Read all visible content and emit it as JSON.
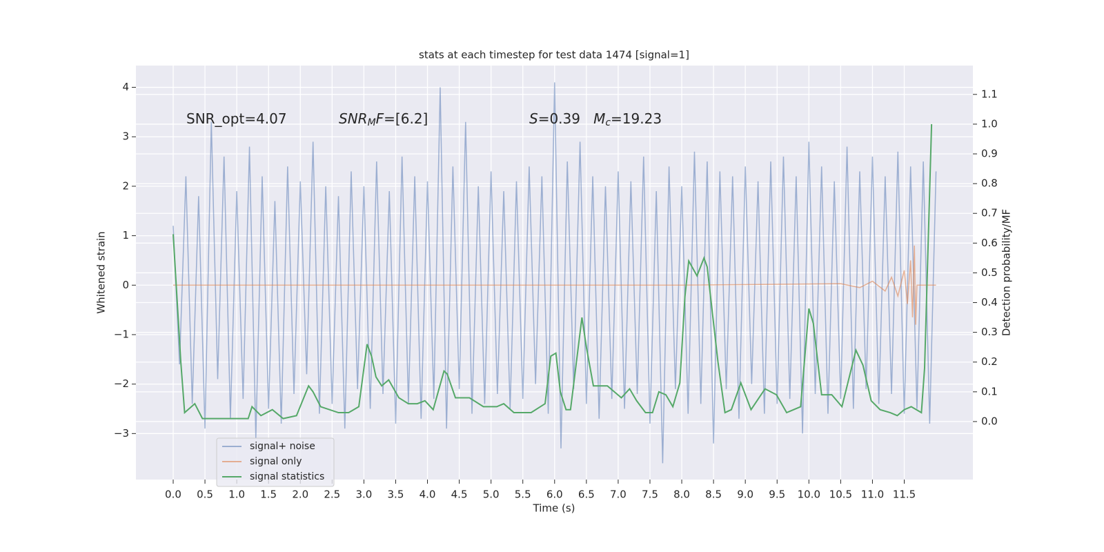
{
  "chart_data": {
    "type": "line",
    "title": "stats at each timestep for test data 1474 [signal=1]",
    "x_label": "Time (s)",
    "y_label": "Whitened strain",
    "y2_label": "Detection probability/MF",
    "xlim": [
      -0.586,
      12.58
    ],
    "ylim": [
      -3.93,
      4.44
    ],
    "y2lim": [
      -0.195,
      1.197
    ],
    "xticks": [
      {
        "value": 0,
        "label": "0.0"
      },
      0.5,
      {
        "value": 1,
        "label": "1.0"
      },
      1.5,
      {
        "value": 2,
        "label": "2.0"
      },
      2.5,
      {
        "value": 3,
        "label": "3.0"
      },
      3.5,
      {
        "value": 4,
        "label": "4.0"
      },
      4.5,
      {
        "value": 5,
        "label": "5.0"
      },
      5.5,
      {
        "value": 6,
        "label": "6.0"
      },
      6.5,
      {
        "value": 7,
        "label": "7.0"
      },
      7.5,
      {
        "value": 8,
        "label": "8.0"
      },
      8.5,
      {
        "value": 9,
        "label": "9.0"
      },
      9.5,
      {
        "value": 10,
        "label": "10.0"
      },
      10.5,
      {
        "value": 11,
        "label": "11.0"
      },
      11.5
    ],
    "yticks": [
      {
        "value": -3,
        "label": "−3"
      },
      {
        "value": -2,
        "label": "−2"
      },
      {
        "value": -1,
        "label": "−1"
      },
      0,
      1,
      2,
      3,
      4
    ],
    "y2ticks": [
      {
        "value": 0,
        "label": "0.0"
      },
      0.1,
      0.2,
      0.3,
      0.4,
      0.5,
      0.6,
      0.7,
      0.8,
      0.9,
      {
        "value": 1,
        "label": "1.0"
      },
      1.1
    ],
    "grid": true,
    "legend": "lower left",
    "annotations": [
      [
        {
          "text": "SNR_opt=4.07"
        }
      ],
      [
        {
          "text": "SNR",
          "italic": true
        },
        {
          "text": "M",
          "italic": true,
          "sub": true
        },
        {
          "text": "F",
          "italic": true
        },
        {
          "text": "=[6.2]"
        }
      ],
      [
        {
          "text": "S",
          "italic": true
        },
        {
          "text": "=0.39   "
        },
        {
          "text": "M",
          "italic": true
        },
        {
          "text": "c",
          "italic": true,
          "sub": true
        },
        {
          "text": "=19.23"
        }
      ]
    ],
    "series": [
      {
        "name": "signal+ noise",
        "color": "#4c72b0",
        "opacity": 0.5,
        "x": [
          0.0,
          0.1,
          0.2,
          0.3,
          0.4,
          0.5,
          0.6,
          0.7,
          0.8,
          0.9,
          1.0,
          1.1,
          1.2,
          1.3,
          1.4,
          1.5,
          1.6,
          1.7,
          1.8,
          1.9,
          2.0,
          2.1,
          2.2,
          2.3,
          2.4,
          2.5,
          2.6,
          2.7,
          2.8,
          2.9,
          3.0,
          3.1,
          3.2,
          3.3,
          3.4,
          3.5,
          3.6,
          3.7,
          3.8,
          3.9,
          4.0,
          4.1,
          4.2,
          4.3,
          4.4,
          4.5,
          4.6,
          4.7,
          4.8,
          4.9,
          5.0,
          5.1,
          5.2,
          5.3,
          5.4,
          5.5,
          5.6,
          5.7,
          5.8,
          5.9,
          6.0,
          6.1,
          6.2,
          6.3,
          6.4,
          6.5,
          6.6,
          6.7,
          6.8,
          6.9,
          7.0,
          7.1,
          7.2,
          7.3,
          7.4,
          7.5,
          7.6,
          7.7,
          7.8,
          7.9,
          8.0,
          8.1,
          8.2,
          8.3,
          8.4,
          8.5,
          8.6,
          8.7,
          8.8,
          8.9,
          9.0,
          9.1,
          9.2,
          9.3,
          9.4,
          9.5,
          9.6,
          9.7,
          9.8,
          9.9,
          10.0,
          10.1,
          10.2,
          10.3,
          10.4,
          10.5,
          10.6,
          10.7,
          10.8,
          10.9,
          11.0,
          11.1,
          11.2,
          11.3,
          11.4,
          11.5,
          11.6,
          11.7,
          11.8,
          11.9,
          12.0
        ],
        "values": [
          1.2,
          -1.6,
          2.2,
          -2.4,
          1.8,
          -2.9,
          3.3,
          -1.9,
          2.6,
          -2.7,
          1.9,
          -2.3,
          2.8,
          -3.1,
          2.2,
          -2.5,
          1.7,
          -2.8,
          2.4,
          -2.2,
          2.1,
          -1.8,
          2.9,
          -2.6,
          2.0,
          -2.4,
          1.8,
          -2.9,
          2.3,
          -2.1,
          2.0,
          -2.5,
          2.5,
          -2.2,
          1.9,
          -2.8,
          2.6,
          -2.4,
          2.2,
          -2.7,
          2.1,
          -2.3,
          4.0,
          -2.9,
          2.4,
          -2.1,
          3.3,
          -2.6,
          2.0,
          -2.4,
          2.3,
          -2.2,
          1.9,
          -2.5,
          2.1,
          -2.3,
          2.4,
          -2.0,
          2.2,
          -2.6,
          4.1,
          -3.3,
          2.5,
          -2.1,
          2.9,
          -2.4,
          2.2,
          -2.7,
          2.0,
          -2.3,
          2.3,
          -2.5,
          2.1,
          -2.2,
          2.6,
          -2.8,
          1.9,
          -3.6,
          2.4,
          -2.1,
          2.0,
          -2.6,
          2.7,
          -2.4,
          2.5,
          -3.2,
          2.3,
          -2.1,
          2.2,
          -2.7,
          2.4,
          -2.0,
          2.1,
          -2.6,
          2.5,
          -2.4,
          2.6,
          -2.3,
          2.2,
          -3.0,
          2.9,
          -2.2,
          2.4,
          -2.6,
          2.1,
          -2.3,
          2.8,
          -2.5,
          2.3,
          -2.1,
          2.6,
          -2.4,
          2.2,
          -2.2,
          2.7,
          -2.6,
          2.4,
          -2.5,
          2.5,
          -2.8,
          2.3
        ]
      },
      {
        "name": "signal only",
        "color": "#dd8452",
        "opacity": 0.6,
        "x": [
          0.0,
          8.0,
          10.5,
          10.8,
          11.0,
          11.2,
          11.3,
          11.4,
          11.5,
          11.55,
          11.6,
          11.63,
          11.66,
          11.68,
          11.7,
          12.0
        ],
        "values": [
          0,
          0,
          0.03,
          -0.05,
          0.08,
          -0.12,
          0.16,
          -0.22,
          0.3,
          -0.38,
          0.5,
          -0.65,
          0.8,
          -0.8,
          0,
          0
        ]
      },
      {
        "name": "signal statistics",
        "color": "#55a868",
        "opacity": 1,
        "axis": "y2",
        "x": [
          0.0,
          0.12,
          0.18,
          0.34,
          0.46,
          0.75,
          1.18,
          1.24,
          1.38,
          1.56,
          1.73,
          1.94,
          2.13,
          2.2,
          2.32,
          2.6,
          2.76,
          2.92,
          3.05,
          3.12,
          3.19,
          3.28,
          3.39,
          3.55,
          3.7,
          3.84,
          3.96,
          4.09,
          4.26,
          4.31,
          4.44,
          4.66,
          4.88,
          5.09,
          5.2,
          5.36,
          5.63,
          5.85,
          5.94,
          6.02,
          6.09,
          6.18,
          6.25,
          6.43,
          6.5,
          6.61,
          6.83,
          7.05,
          7.18,
          7.29,
          7.43,
          7.54,
          7.64,
          7.75,
          7.86,
          7.97,
          8.05,
          8.11,
          8.24,
          8.35,
          8.4,
          8.57,
          8.68,
          8.78,
          8.93,
          9.09,
          9.31,
          9.49,
          9.65,
          9.87,
          10.0,
          10.07,
          10.2,
          10.36,
          10.52,
          10.74,
          10.85,
          10.98,
          11.12,
          11.28,
          11.39,
          11.5,
          11.61,
          11.77,
          11.82,
          11.93
        ],
        "values": [
          0.63,
          0.2,
          0.03,
          0.06,
          0.01,
          0.01,
          0.01,
          0.05,
          0.02,
          0.04,
          0.01,
          0.02,
          0.12,
          0.1,
          0.05,
          0.03,
          0.03,
          0.05,
          0.26,
          0.22,
          0.15,
          0.12,
          0.14,
          0.08,
          0.06,
          0.06,
          0.07,
          0.04,
          0.17,
          0.16,
          0.08,
          0.08,
          0.05,
          0.05,
          0.06,
          0.03,
          0.03,
          0.06,
          0.22,
          0.23,
          0.1,
          0.04,
          0.04,
          0.35,
          0.25,
          0.12,
          0.12,
          0.08,
          0.11,
          0.07,
          0.03,
          0.03,
          0.1,
          0.09,
          0.05,
          0.13,
          0.42,
          0.54,
          0.49,
          0.55,
          0.52,
          0.2,
          0.03,
          0.04,
          0.13,
          0.04,
          0.11,
          0.09,
          0.03,
          0.05,
          0.38,
          0.33,
          0.09,
          0.09,
          0.05,
          0.24,
          0.19,
          0.07,
          0.04,
          0.03,
          0.02,
          0.04,
          0.05,
          0.03,
          0.18,
          1.0
        ]
      }
    ]
  }
}
